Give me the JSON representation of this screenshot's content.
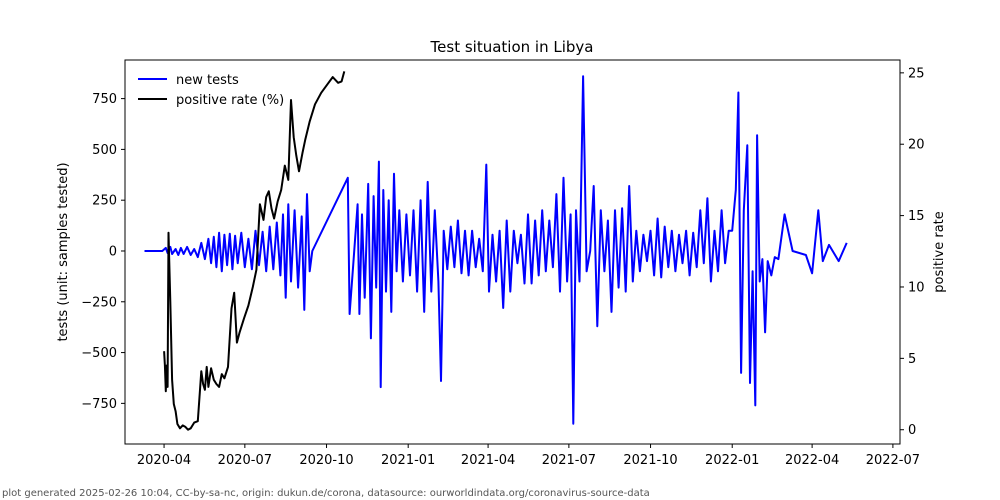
{
  "chart_data": {
    "type": "line",
    "title": "Test situation in Libya",
    "ylabel": "tests (unit: samples tested)",
    "y2label": "positive rate",
    "ylim": [
      -950,
      940
    ],
    "y2lim": [
      -1,
      25.9
    ],
    "xlim": [
      "2020-02-17",
      "2022-07-09"
    ],
    "x_ticks": [
      "2020-04-01",
      "2020-07-01",
      "2020-10-01",
      "2021-01-01",
      "2021-04-01",
      "2021-07-01",
      "2021-10-01",
      "2022-01-01",
      "2022-04-01",
      "2022-07-01"
    ],
    "x_tick_labels": [
      "2020-04",
      "2020-07",
      "2020-10",
      "2021-01",
      "2021-04",
      "2021-07",
      "2021-10",
      "2022-01",
      "2022-04",
      "2022-07"
    ],
    "y_ticks": [
      -750,
      -500,
      -250,
      0,
      250,
      500,
      750
    ],
    "y_tick_labels": [
      "−750",
      "−500",
      "−250",
      "0",
      "250",
      "500",
      "750"
    ],
    "y2_ticks": [
      0,
      5,
      10,
      15,
      20,
      25
    ],
    "y2_tick_labels": [
      "0",
      "5",
      "10",
      "15",
      "20",
      "25"
    ],
    "legend_position": "top-left",
    "series": [
      {
        "name": "new tests",
        "axis": "left",
        "color": "#0000ff",
        "points": [
          [
            "2020-03-10",
            0
          ],
          [
            "2020-03-20",
            0
          ],
          [
            "2020-03-30",
            0
          ],
          [
            "2020-04-03",
            15
          ],
          [
            "2020-04-05",
            -10
          ],
          [
            "2020-04-08",
            20
          ],
          [
            "2020-04-10",
            -15
          ],
          [
            "2020-04-14",
            10
          ],
          [
            "2020-04-17",
            -20
          ],
          [
            "2020-04-20",
            15
          ],
          [
            "2020-04-23",
            -15
          ],
          [
            "2020-04-27",
            20
          ],
          [
            "2020-05-01",
            -20
          ],
          [
            "2020-05-05",
            10
          ],
          [
            "2020-05-09",
            -30
          ],
          [
            "2020-05-13",
            40
          ],
          [
            "2020-05-17",
            -40
          ],
          [
            "2020-05-21",
            60
          ],
          [
            "2020-05-24",
            -60
          ],
          [
            "2020-05-27",
            70
          ],
          [
            "2020-05-30",
            -80
          ],
          [
            "2020-06-02",
            90
          ],
          [
            "2020-06-05",
            -100
          ],
          [
            "2020-06-08",
            80
          ],
          [
            "2020-06-11",
            -70
          ],
          [
            "2020-06-14",
            85
          ],
          [
            "2020-06-17",
            -90
          ],
          [
            "2020-06-20",
            75
          ],
          [
            "2020-06-23",
            -60
          ],
          [
            "2020-06-27",
            90
          ],
          [
            "2020-07-01",
            -80
          ],
          [
            "2020-07-05",
            60
          ],
          [
            "2020-07-09",
            -90
          ],
          [
            "2020-07-13",
            100
          ],
          [
            "2020-07-17",
            -70
          ],
          [
            "2020-07-21",
            95
          ],
          [
            "2020-07-25",
            -100
          ],
          [
            "2020-07-29",
            120
          ],
          [
            "2020-08-02",
            -90
          ],
          [
            "2020-08-06",
            140
          ],
          [
            "2020-08-10",
            -120
          ],
          [
            "2020-08-13",
            180
          ],
          [
            "2020-08-16",
            -230
          ],
          [
            "2020-08-19",
            230
          ],
          [
            "2020-08-22",
            -150
          ],
          [
            "2020-08-26",
            200
          ],
          [
            "2020-08-30",
            -180
          ],
          [
            "2020-09-03",
            170
          ],
          [
            "2020-09-06",
            -290
          ],
          [
            "2020-09-09",
            280
          ],
          [
            "2020-09-12",
            -100
          ],
          [
            "2020-09-15",
            0
          ],
          [
            "2020-10-25",
            360
          ],
          [
            "2020-10-27",
            -310
          ],
          [
            "2020-10-31",
            -70
          ],
          [
            "2020-11-05",
            230
          ],
          [
            "2020-11-07",
            -310
          ],
          [
            "2020-11-10",
            180
          ],
          [
            "2020-11-13",
            -230
          ],
          [
            "2020-11-17",
            330
          ],
          [
            "2020-11-20",
            -430
          ],
          [
            "2020-11-23",
            270
          ],
          [
            "2020-11-26",
            -180
          ],
          [
            "2020-11-29",
            440
          ],
          [
            "2020-12-01",
            -670
          ],
          [
            "2020-12-04",
            300
          ],
          [
            "2020-12-07",
            -200
          ],
          [
            "2020-12-10",
            250
          ],
          [
            "2020-12-13",
            -300
          ],
          [
            "2020-12-16",
            380
          ],
          [
            "2020-12-19",
            -100
          ],
          [
            "2020-12-22",
            200
          ],
          [
            "2020-12-26",
            -150
          ],
          [
            "2020-12-30",
            180
          ],
          [
            "2021-01-03",
            -120
          ],
          [
            "2021-01-07",
            200
          ],
          [
            "2021-01-11",
            -200
          ],
          [
            "2021-01-15",
            250
          ],
          [
            "2021-01-19",
            -300
          ],
          [
            "2021-01-23",
            340
          ],
          [
            "2021-01-27",
            -200
          ],
          [
            "2021-01-31",
            200
          ],
          [
            "2021-02-04",
            -150
          ],
          [
            "2021-02-07",
            -640
          ],
          [
            "2021-02-10",
            100
          ],
          [
            "2021-02-14",
            -90
          ],
          [
            "2021-02-18",
            120
          ],
          [
            "2021-02-22",
            -80
          ],
          [
            "2021-02-26",
            150
          ],
          [
            "2021-03-02",
            -110
          ],
          [
            "2021-03-06",
            100
          ],
          [
            "2021-03-10",
            -120
          ],
          [
            "2021-03-14",
            100
          ],
          [
            "2021-03-18",
            -80
          ],
          [
            "2021-03-22",
            60
          ],
          [
            "2021-03-26",
            -100
          ],
          [
            "2021-03-30",
            425
          ],
          [
            "2021-04-02",
            -200
          ],
          [
            "2021-04-06",
            80
          ],
          [
            "2021-04-10",
            -150
          ],
          [
            "2021-04-14",
            100
          ],
          [
            "2021-04-18",
            -280
          ],
          [
            "2021-04-22",
            150
          ],
          [
            "2021-04-26",
            -200
          ],
          [
            "2021-04-30",
            100
          ],
          [
            "2021-05-04",
            -60
          ],
          [
            "2021-05-08",
            80
          ],
          [
            "2021-05-12",
            -160
          ],
          [
            "2021-05-16",
            180
          ],
          [
            "2021-05-20",
            -160
          ],
          [
            "2021-05-24",
            150
          ],
          [
            "2021-05-28",
            -120
          ],
          [
            "2021-06-01",
            200
          ],
          [
            "2021-06-05",
            -100
          ],
          [
            "2021-06-09",
            150
          ],
          [
            "2021-06-13",
            -80
          ],
          [
            "2021-06-17",
            280
          ],
          [
            "2021-06-21",
            -200
          ],
          [
            "2021-06-25",
            360
          ],
          [
            "2021-06-29",
            -150
          ],
          [
            "2021-07-03",
            180
          ],
          [
            "2021-07-06",
            -850
          ],
          [
            "2021-07-09",
            200
          ],
          [
            "2021-07-13",
            -150
          ],
          [
            "2021-07-17",
            860
          ],
          [
            "2021-07-21",
            -100
          ],
          [
            "2021-07-25",
            0
          ],
          [
            "2021-07-29",
            320
          ],
          [
            "2021-08-02",
            -370
          ],
          [
            "2021-08-06",
            200
          ],
          [
            "2021-08-10",
            -100
          ],
          [
            "2021-08-14",
            150
          ],
          [
            "2021-08-18",
            -300
          ],
          [
            "2021-08-22",
            200
          ],
          [
            "2021-08-26",
            -180
          ],
          [
            "2021-08-30",
            210
          ],
          [
            "2021-09-03",
            -200
          ],
          [
            "2021-09-07",
            320
          ],
          [
            "2021-09-11",
            -150
          ],
          [
            "2021-09-15",
            100
          ],
          [
            "2021-09-19",
            -100
          ],
          [
            "2021-09-23",
            80
          ],
          [
            "2021-09-27",
            -50
          ],
          [
            "2021-10-01",
            100
          ],
          [
            "2021-10-05",
            -120
          ],
          [
            "2021-10-09",
            160
          ],
          [
            "2021-10-13",
            -130
          ],
          [
            "2021-10-17",
            120
          ],
          [
            "2021-10-21",
            -80
          ],
          [
            "2021-10-25",
            100
          ],
          [
            "2021-10-29",
            -100
          ],
          [
            "2021-11-02",
            80
          ],
          [
            "2021-11-06",
            -60
          ],
          [
            "2021-11-10",
            100
          ],
          [
            "2021-11-14",
            -120
          ],
          [
            "2021-11-18",
            90
          ],
          [
            "2021-11-22",
            -80
          ],
          [
            "2021-11-26",
            200
          ],
          [
            "2021-11-30",
            -60
          ],
          [
            "2021-12-04",
            260
          ],
          [
            "2021-12-08",
            -150
          ],
          [
            "2021-12-12",
            100
          ],
          [
            "2021-12-16",
            -100
          ],
          [
            "2021-12-20",
            200
          ],
          [
            "2021-12-24",
            -60
          ],
          [
            "2021-12-28",
            100
          ],
          [
            "2022-01-01",
            100
          ],
          [
            "2022-01-05",
            300
          ],
          [
            "2022-01-08",
            780
          ],
          [
            "2022-01-11",
            -600
          ],
          [
            "2022-01-14",
            200
          ],
          [
            "2022-01-18",
            520
          ],
          [
            "2022-01-21",
            -650
          ],
          [
            "2022-01-24",
            -100
          ],
          [
            "2022-01-27",
            -760
          ],
          [
            "2022-01-29",
            570
          ],
          [
            "2022-02-01",
            -150
          ],
          [
            "2022-02-04",
            -40
          ],
          [
            "2022-02-07",
            -400
          ],
          [
            "2022-02-10",
            -50
          ],
          [
            "2022-02-14",
            -120
          ],
          [
            "2022-02-18",
            -30
          ],
          [
            "2022-02-22",
            -40
          ],
          [
            "2022-03-01",
            180
          ],
          [
            "2022-03-10",
            0
          ],
          [
            "2022-03-25",
            -20
          ],
          [
            "2022-04-01",
            -110
          ],
          [
            "2022-04-08",
            200
          ],
          [
            "2022-04-13",
            -50
          ],
          [
            "2022-04-20",
            30
          ],
          [
            "2022-05-01",
            -50
          ],
          [
            "2022-05-10",
            40
          ]
        ]
      },
      {
        "name": "positive rate (%)",
        "axis": "right",
        "color": "#000000",
        "points": [
          [
            "2020-04-01",
            5.5
          ],
          [
            "2020-04-02",
            4.5
          ],
          [
            "2020-04-03",
            2.7
          ],
          [
            "2020-04-04",
            4.5
          ],
          [
            "2020-04-05",
            3.0
          ],
          [
            "2020-04-06",
            13.8
          ],
          [
            "2020-04-08",
            9.0
          ],
          [
            "2020-04-10",
            3.5
          ],
          [
            "2020-04-12",
            1.8
          ],
          [
            "2020-04-14",
            1.3
          ],
          [
            "2020-04-16",
            0.4
          ],
          [
            "2020-04-19",
            0.1
          ],
          [
            "2020-04-22",
            0.3
          ],
          [
            "2020-04-25",
            0.2
          ],
          [
            "2020-04-28",
            0.0
          ],
          [
            "2020-05-01",
            0.1
          ],
          [
            "2020-05-05",
            0.5
          ],
          [
            "2020-05-09",
            0.6
          ],
          [
            "2020-05-13",
            4.1
          ],
          [
            "2020-05-15",
            3.2
          ],
          [
            "2020-05-17",
            2.8
          ],
          [
            "2020-05-19",
            4.4
          ],
          [
            "2020-05-21",
            3.0
          ],
          [
            "2020-05-24",
            4.3
          ],
          [
            "2020-05-27",
            3.5
          ],
          [
            "2020-05-30",
            3.2
          ],
          [
            "2020-06-02",
            3.0
          ],
          [
            "2020-06-05",
            3.9
          ],
          [
            "2020-06-08",
            3.6
          ],
          [
            "2020-06-12",
            4.4
          ],
          [
            "2020-06-16",
            8.5
          ],
          [
            "2020-06-19",
            9.6
          ],
          [
            "2020-06-22",
            6.1
          ],
          [
            "2020-06-25",
            6.8
          ],
          [
            "2020-06-30",
            7.8
          ],
          [
            "2020-07-05",
            8.7
          ],
          [
            "2020-07-10",
            10.0
          ],
          [
            "2020-07-14",
            11.2
          ],
          [
            "2020-07-18",
            15.8
          ],
          [
            "2020-07-22",
            14.7
          ],
          [
            "2020-07-25",
            16.3
          ],
          [
            "2020-07-28",
            16.7
          ],
          [
            "2020-07-31",
            15.5
          ],
          [
            "2020-08-03",
            14.8
          ],
          [
            "2020-08-07",
            16.0
          ],
          [
            "2020-08-11",
            16.8
          ],
          [
            "2020-08-15",
            18.5
          ],
          [
            "2020-08-19",
            17.5
          ],
          [
            "2020-08-22",
            23.1
          ],
          [
            "2020-08-25",
            20.5
          ],
          [
            "2020-08-28",
            19.2
          ],
          [
            "2020-08-31",
            18.1
          ],
          [
            "2020-09-04",
            19.4
          ],
          [
            "2020-09-07",
            20.3
          ],
          [
            "2020-09-12",
            21.6
          ],
          [
            "2020-09-18",
            22.8
          ],
          [
            "2020-09-25",
            23.6
          ],
          [
            "2020-10-02",
            24.2
          ],
          [
            "2020-10-08",
            24.7
          ],
          [
            "2020-10-14",
            24.3
          ],
          [
            "2020-10-18",
            24.4
          ],
          [
            "2020-10-21",
            25.1
          ]
        ]
      }
    ]
  },
  "footer": "plot generated 2025-02-26 10:04, CC-by-sa-nc, origin: dukun.de/corona, datasource: ourworldindata.org/coronavirus-source-data"
}
